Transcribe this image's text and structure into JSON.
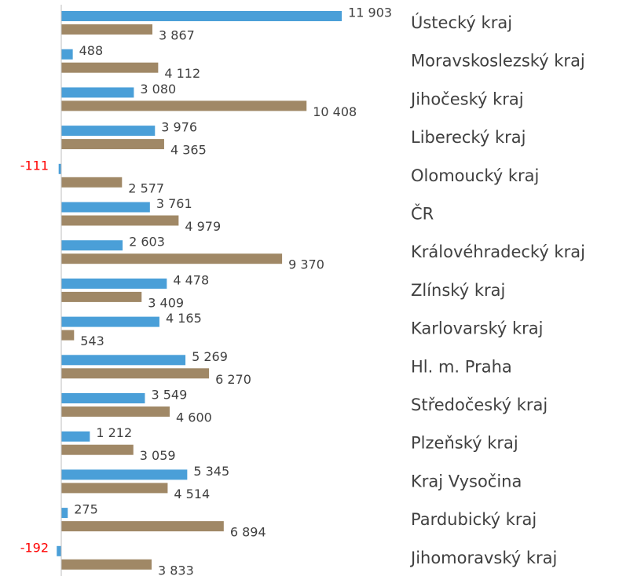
{
  "chart_data": {
    "type": "hbar",
    "categories": [
      "Ústecký kraj",
      "Moravskoslezský kraj",
      "Jihočeský kraj",
      "Liberecký kraj",
      "Olomoucký kraj",
      "ČR",
      "Královéhradecký kraj",
      "Zlínský kraj",
      "Karlovarský kraj",
      "Hl. m. Praha",
      "Středočeský kraj",
      "Plzeňský kraj",
      "Kraj Vysočina",
      "Pardubický kraj",
      "Jihomoravský kraj"
    ],
    "series": [
      {
        "color": "#4a9fd8",
        "values": [
          11903,
          488,
          3080,
          3976,
          -111,
          3761,
          2603,
          4478,
          4165,
          5269,
          3549,
          1212,
          5345,
          275,
          -192
        ],
        "value_labels": [
          "11 903",
          "488",
          "3 080",
          "3 976",
          "-111",
          "3 761",
          "2 603",
          "4 478",
          "4 165",
          "5 269",
          "3 549",
          "1 212",
          "5 345",
          "275",
          "-192"
        ]
      },
      {
        "color": "#a08866",
        "values": [
          3867,
          4112,
          10408,
          4365,
          2577,
          4979,
          9370,
          3409,
          543,
          6270,
          4600,
          3059,
          4514,
          6894,
          3833
        ],
        "value_labels": [
          "3 867",
          "4 112",
          "10 408",
          "4 365",
          "2 577",
          "4 979",
          "9 370",
          "3 409",
          "543",
          "6 270",
          "4 600",
          "3 059",
          "4 514",
          "6 894",
          "3 833"
        ]
      }
    ],
    "xlim": [
      -2600,
      12500
    ],
    "negative_label_color": "#ff0000"
  }
}
